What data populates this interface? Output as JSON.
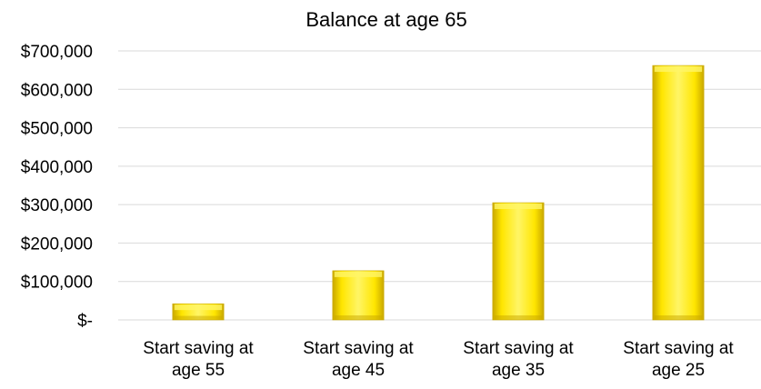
{
  "chart_data": {
    "type": "bar",
    "title": "Balance at age 65",
    "xlabel": "",
    "ylabel": "",
    "categories": [
      [
        "Start saving at",
        "age 55"
      ],
      [
        "Start saving at",
        "age 45"
      ],
      [
        "Start saving at",
        "age 35"
      ],
      [
        "Start saving at",
        "age 25"
      ]
    ],
    "values": [
      42000,
      128000,
      305000,
      662000
    ],
    "ylim": [
      0,
      700000
    ],
    "yticks": [
      0,
      100000,
      200000,
      300000,
      400000,
      500000,
      600000,
      700000
    ],
    "ytick_labels": [
      "$-",
      "$100,000",
      "$200,000",
      "$300,000",
      "$400,000",
      "$500,000",
      "$600,000",
      "$700,000"
    ],
    "grid": true,
    "legend": "none",
    "colors": {
      "bar_light": "#FFF566",
      "bar_main": "#FFE600",
      "bar_dark": "#C9A800",
      "grid": "#D9D9D9"
    }
  }
}
